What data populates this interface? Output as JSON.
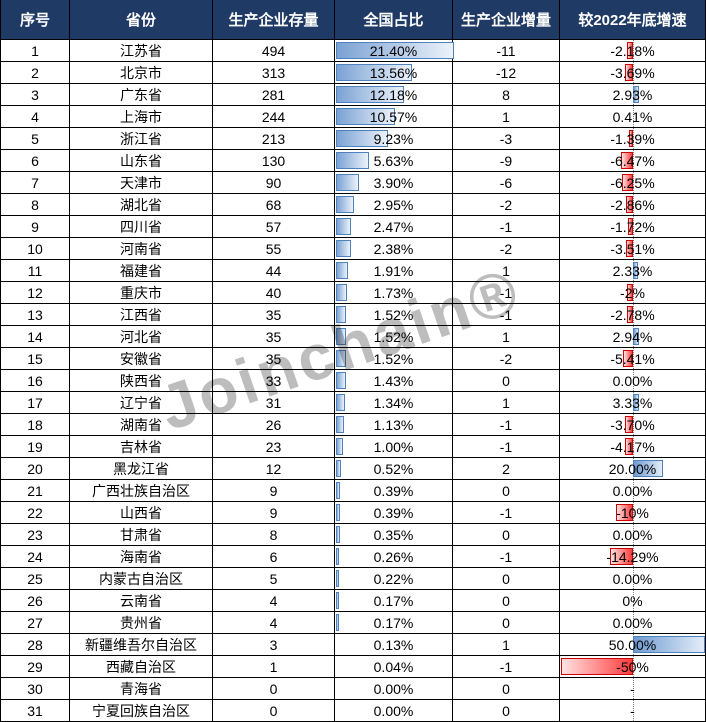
{
  "watermark": {
    "text": "Joinchain®"
  },
  "colors": {
    "header_bg": "#1f3a64",
    "header_text": "#ffffff",
    "grid_line": "#000000",
    "share_bar_fill_start": "#7ba2d4",
    "share_bar_fill_end": "#ecf2fa",
    "share_bar_border": "#4f81bd",
    "growth_pos_border": "#4f81bd",
    "growth_neg_border": "#d00000",
    "growth_neg_fill": "#ff3c3c",
    "axis_dotted": "#7f7f7f"
  },
  "chart_data": {
    "type": "table",
    "title": "",
    "columns": [
      "序号",
      "省份",
      "生产企业存量",
      "全国占比",
      "生产企业增量",
      "较2022年底增速"
    ],
    "share_bar_max": 21.4,
    "growth_axis_range": [
      -50,
      50
    ],
    "rows": [
      {
        "no": "1",
        "province": "江苏省",
        "stock": "494",
        "share": "21.40%",
        "share_val": 21.4,
        "delta": "-11",
        "growth": "-2.18%",
        "growth_val": -2.18
      },
      {
        "no": "2",
        "province": "北京市",
        "stock": "313",
        "share": "13.56%",
        "share_val": 13.56,
        "delta": "-12",
        "growth": "-3.69%",
        "growth_val": -3.69
      },
      {
        "no": "3",
        "province": "广东省",
        "stock": "281",
        "share": "12.18%",
        "share_val": 12.18,
        "delta": "8",
        "growth": "2.93%",
        "growth_val": 2.93
      },
      {
        "no": "4",
        "province": "上海市",
        "stock": "244",
        "share": "10.57%",
        "share_val": 10.57,
        "delta": "1",
        "growth": "0.41%",
        "growth_val": 0.41
      },
      {
        "no": "5",
        "province": "浙江省",
        "stock": "213",
        "share": "9.23%",
        "share_val": 9.23,
        "delta": "-3",
        "growth": "-1.39%",
        "growth_val": -1.39
      },
      {
        "no": "6",
        "province": "山东省",
        "stock": "130",
        "share": "5.63%",
        "share_val": 5.63,
        "delta": "-9",
        "growth": "-6.47%",
        "growth_val": -6.47
      },
      {
        "no": "7",
        "province": "天津市",
        "stock": "90",
        "share": "3.90%",
        "share_val": 3.9,
        "delta": "-6",
        "growth": "-6.25%",
        "growth_val": -6.25
      },
      {
        "no": "8",
        "province": "湖北省",
        "stock": "68",
        "share": "2.95%",
        "share_val": 2.95,
        "delta": "-2",
        "growth": "-2.86%",
        "growth_val": -2.86
      },
      {
        "no": "9",
        "province": "四川省",
        "stock": "57",
        "share": "2.47%",
        "share_val": 2.47,
        "delta": "-1",
        "growth": "-1.72%",
        "growth_val": -1.72
      },
      {
        "no": "10",
        "province": "河南省",
        "stock": "55",
        "share": "2.38%",
        "share_val": 2.38,
        "delta": "-2",
        "growth": "-3.51%",
        "growth_val": -3.51
      },
      {
        "no": "11",
        "province": "福建省",
        "stock": "44",
        "share": "1.91%",
        "share_val": 1.91,
        "delta": "1",
        "growth": "2.33%",
        "growth_val": 2.33
      },
      {
        "no": "12",
        "province": "重庆市",
        "stock": "40",
        "share": "1.73%",
        "share_val": 1.73,
        "delta": "-1",
        "growth": "-2%",
        "growth_val": -2.44
      },
      {
        "no": "13",
        "province": "江西省",
        "stock": "35",
        "share": "1.52%",
        "share_val": 1.52,
        "delta": "-1",
        "growth": "-2.78%",
        "growth_val": -2.78
      },
      {
        "no": "14",
        "province": "河北省",
        "stock": "35",
        "share": "1.52%",
        "share_val": 1.52,
        "delta": "1",
        "growth": "2.94%",
        "growth_val": 2.94
      },
      {
        "no": "15",
        "province": "安徽省",
        "stock": "35",
        "share": "1.52%",
        "share_val": 1.52,
        "delta": "-2",
        "growth": "-5.41%",
        "growth_val": -5.41
      },
      {
        "no": "16",
        "province": "陕西省",
        "stock": "33",
        "share": "1.43%",
        "share_val": 1.43,
        "delta": "0",
        "growth": "0.00%",
        "growth_val": 0
      },
      {
        "no": "17",
        "province": "辽宁省",
        "stock": "31",
        "share": "1.34%",
        "share_val": 1.34,
        "delta": "1",
        "growth": "3.33%",
        "growth_val": 3.33
      },
      {
        "no": "18",
        "province": "湖南省",
        "stock": "26",
        "share": "1.13%",
        "share_val": 1.13,
        "delta": "-1",
        "growth": "-3.70%",
        "growth_val": -3.7
      },
      {
        "no": "19",
        "province": "吉林省",
        "stock": "23",
        "share": "1.00%",
        "share_val": 1.0,
        "delta": "-1",
        "growth": "-4.17%",
        "growth_val": -4.17
      },
      {
        "no": "20",
        "province": "黑龙江省",
        "stock": "12",
        "share": "0.52%",
        "share_val": 0.52,
        "delta": "2",
        "growth": "20.00%",
        "growth_val": 20.0
      },
      {
        "no": "21",
        "province": "广西壮族自治区",
        "stock": "9",
        "share": "0.39%",
        "share_val": 0.39,
        "delta": "0",
        "growth": "0.00%",
        "growth_val": 0
      },
      {
        "no": "22",
        "province": "山西省",
        "stock": "9",
        "share": "0.39%",
        "share_val": 0.39,
        "delta": "-1",
        "growth": "-10%",
        "growth_val": -10
      },
      {
        "no": "23",
        "province": "甘肃省",
        "stock": "8",
        "share": "0.35%",
        "share_val": 0.35,
        "delta": "0",
        "growth": "0.00%",
        "growth_val": 0
      },
      {
        "no": "24",
        "province": "海南省",
        "stock": "6",
        "share": "0.26%",
        "share_val": 0.26,
        "delta": "-1",
        "growth": "-14.29%",
        "growth_val": -14.29
      },
      {
        "no": "25",
        "province": "内蒙古自治区",
        "stock": "5",
        "share": "0.22%",
        "share_val": 0.22,
        "delta": "0",
        "growth": "0.00%",
        "growth_val": 0
      },
      {
        "no": "26",
        "province": "云南省",
        "stock": "4",
        "share": "0.17%",
        "share_val": 0.17,
        "delta": "0",
        "growth": "0%",
        "growth_val": 0
      },
      {
        "no": "27",
        "province": "贵州省",
        "stock": "4",
        "share": "0.17%",
        "share_val": 0.17,
        "delta": "0",
        "growth": "0.00%",
        "growth_val": 0
      },
      {
        "no": "28",
        "province": "新疆维吾尔自治区",
        "stock": "3",
        "share": "0.13%",
        "share_val": 0.13,
        "delta": "1",
        "growth": "50.00%",
        "growth_val": 50.0
      },
      {
        "no": "29",
        "province": "西藏自治区",
        "stock": "1",
        "share": "0.04%",
        "share_val": 0.04,
        "delta": "-1",
        "growth": "-50%",
        "growth_val": -50
      },
      {
        "no": "30",
        "province": "青海省",
        "stock": "0",
        "share": "0.00%",
        "share_val": 0,
        "delta": "0",
        "growth": "-",
        "growth_val": null
      },
      {
        "no": "31",
        "province": "宁夏回族自治区",
        "stock": "0",
        "share": "0.00%",
        "share_val": 0,
        "delta": "0",
        "growth": "-",
        "growth_val": null
      }
    ]
  }
}
